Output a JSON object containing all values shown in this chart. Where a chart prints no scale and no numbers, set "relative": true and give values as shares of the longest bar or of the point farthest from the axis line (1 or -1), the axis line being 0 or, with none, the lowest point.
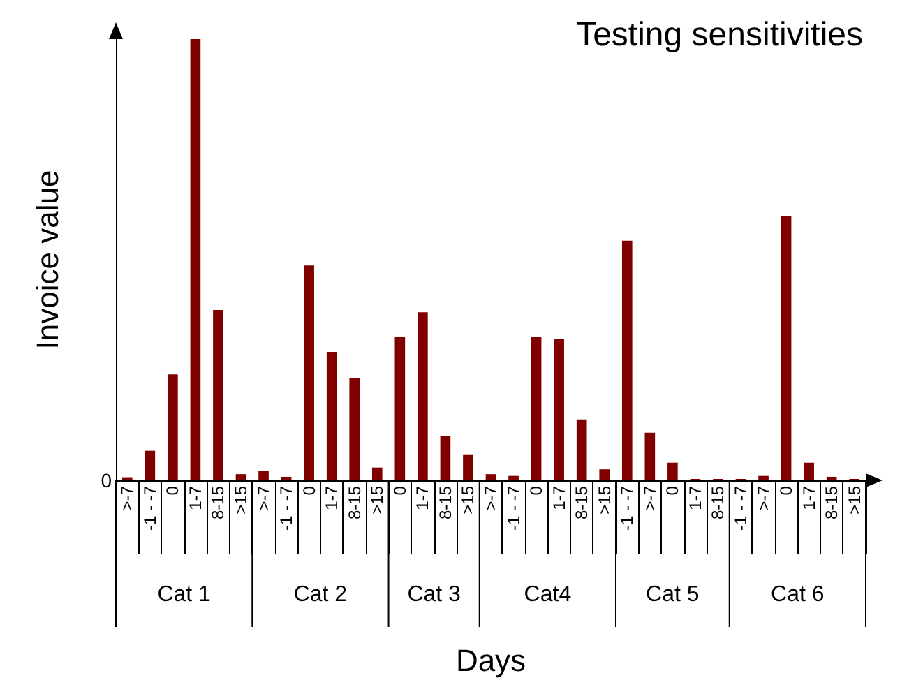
{
  "chart_data": {
    "type": "bar",
    "title": "Testing sensitivities",
    "xlabel": "Days",
    "ylabel": "Invoice value",
    "relative": true,
    "color": "#800000",
    "grid": false,
    "categories": [
      ">-7",
      "-1 - -7",
      "0",
      "1-7",
      "8-15",
      ">15",
      ">-7",
      "-1 - -7",
      "0",
      "1-7",
      "8-15",
      ">15",
      "0",
      "1-7",
      "8-15",
      ">15",
      ">-7",
      "-1 - -7",
      "0",
      "1-7",
      "8-15",
      ">15",
      "-1 - -7",
      ">-7",
      "0",
      "1-7",
      "8-15",
      "-1 - -7",
      ">-7",
      "0",
      "1-7",
      "8-15",
      ">15"
    ],
    "values": [
      0.007,
      0.067,
      0.24,
      1,
      0.386,
      0.014,
      0.022,
      0.008,
      0.487,
      0.291,
      0.232,
      0.029,
      0.325,
      0.381,
      0.1,
      0.059,
      0.014,
      0.01,
      0.325,
      0.321,
      0.138,
      0.025,
      0.543,
      0.108,
      0.04,
      0.002,
      0,
      0.002,
      0.01,
      0.599,
      0.04,
      0.008,
      0.002
    ],
    "annotations": [
      "Cat 1",
      "Cat 2",
      "Cat 3",
      "Cat4",
      "Cat 5",
      "Cat 6",
      "0"
    ]
  }
}
